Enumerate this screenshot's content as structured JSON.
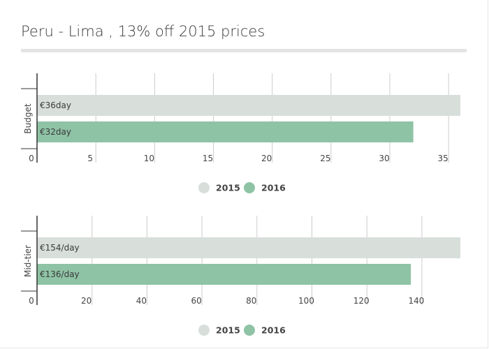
{
  "title": "Peru - Lima , 13% off 2015 prices",
  "colors": {
    "s2015": "#d8dfdb",
    "s2016": "#8fc3a5",
    "grid": "#cccccc",
    "axis": "#333333",
    "rule": "#e4e4e4"
  },
  "chart_data": [
    {
      "type": "bar",
      "orientation": "horizontal",
      "categories": [
        "Budget"
      ],
      "series": [
        {
          "name": "2015",
          "values": [
            36
          ],
          "data_labels": [
            "€36day"
          ]
        },
        {
          "name": "2016",
          "values": [
            32
          ],
          "data_labels": [
            "€32day"
          ]
        }
      ],
      "x_ticks": [
        0,
        5,
        10,
        15,
        20,
        25,
        30,
        35
      ],
      "xlim": [
        0,
        36
      ],
      "grid": true,
      "legend": "bottom"
    },
    {
      "type": "bar",
      "orientation": "horizontal",
      "categories": [
        "Mid-tier"
      ],
      "series": [
        {
          "name": "2015",
          "values": [
            154
          ],
          "data_labels": [
            "€154/day"
          ]
        },
        {
          "name": "2016",
          "values": [
            136
          ],
          "data_labels": [
            "€136/day"
          ]
        }
      ],
      "x_ticks": [
        0,
        20,
        40,
        60,
        80,
        100,
        120,
        140
      ],
      "xlim": [
        0,
        154
      ],
      "grid": true,
      "legend": "bottom"
    }
  ]
}
